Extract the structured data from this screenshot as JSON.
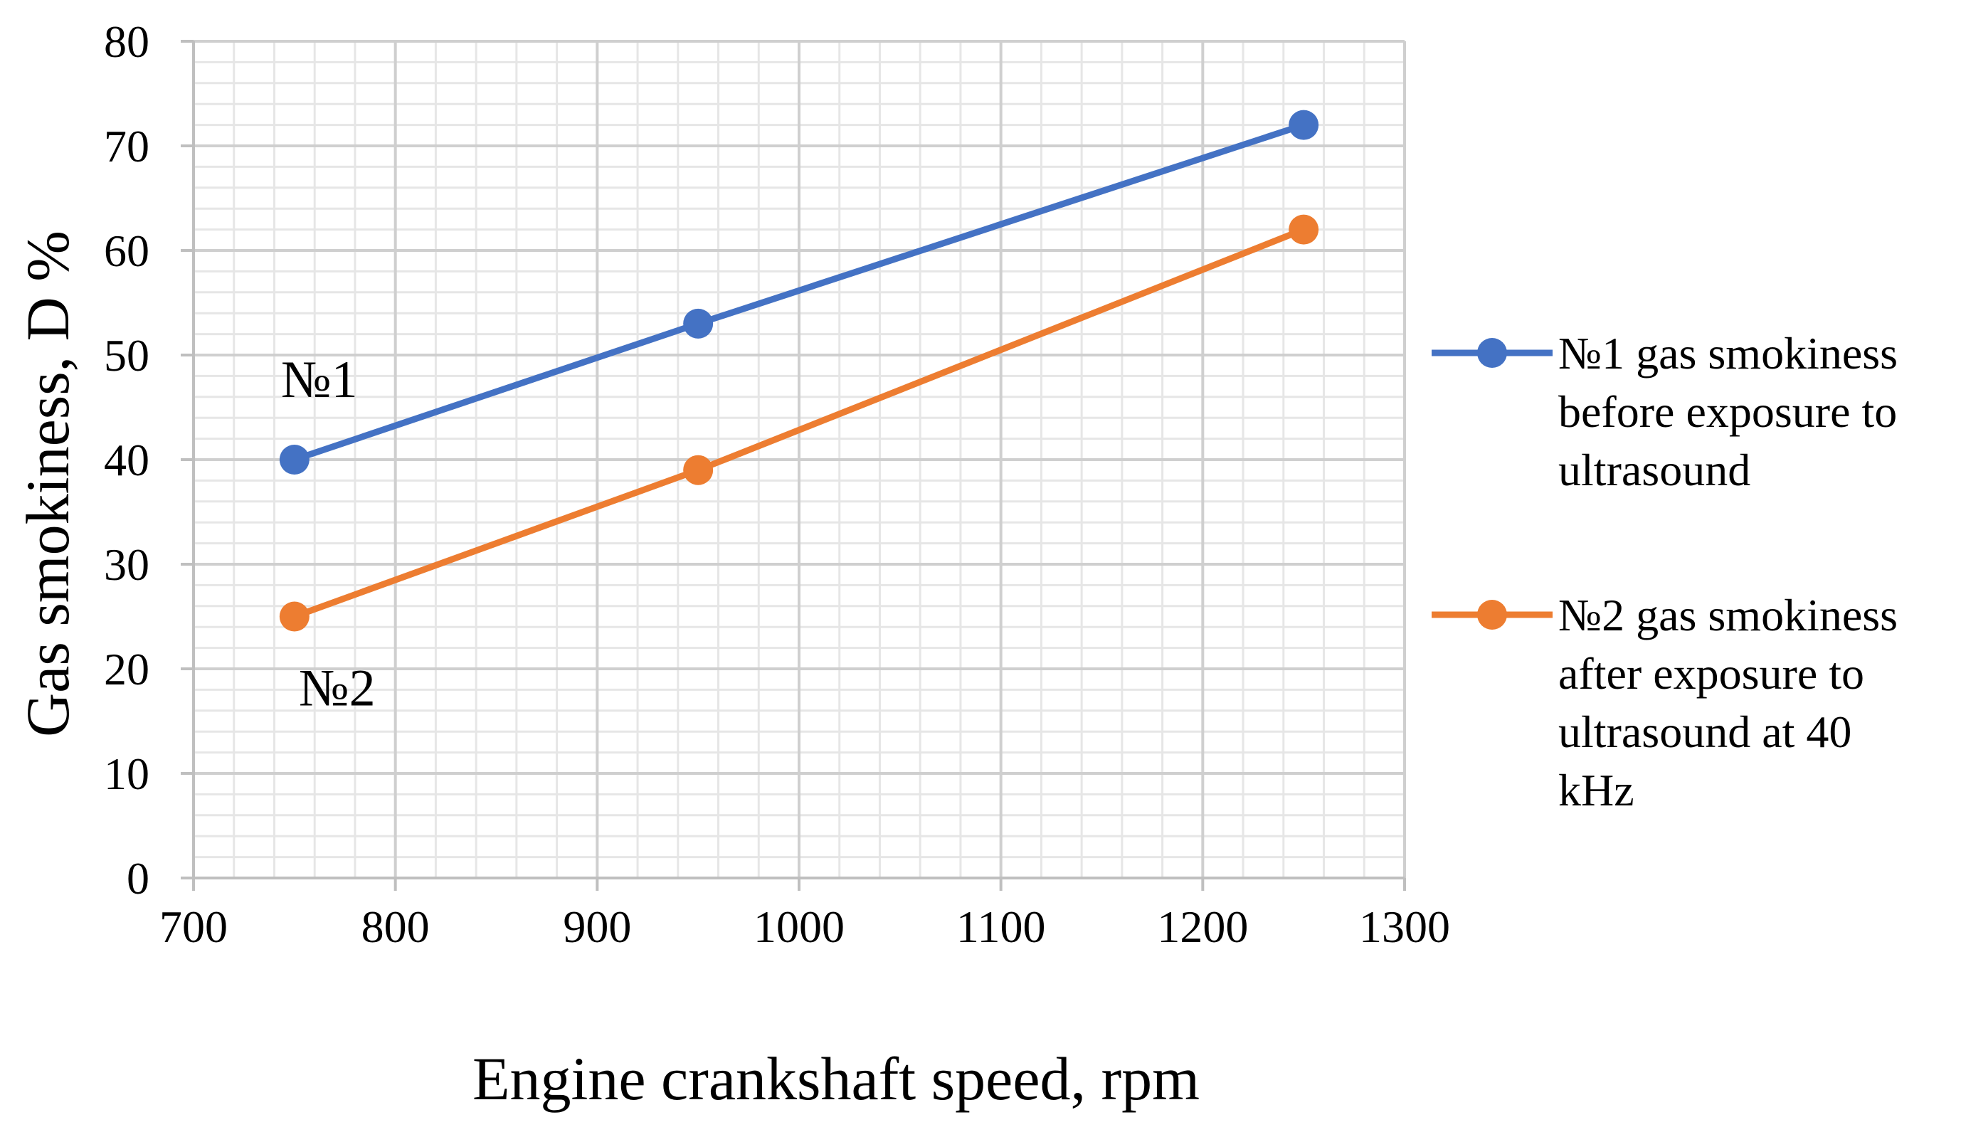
{
  "chart_data": {
    "type": "line",
    "title": "",
    "xlabel": "Engine crankshaft speed, rpm",
    "ylabel": "Gas smokiness,  D %",
    "xlim": [
      700,
      1300
    ],
    "ylim": [
      0,
      80
    ],
    "xticks": [
      700,
      800,
      900,
      1000,
      1100,
      1200,
      1300
    ],
    "yticks": [
      0,
      10,
      20,
      30,
      40,
      50,
      60,
      70,
      80
    ],
    "grid": true,
    "legend_position": "right",
    "series": [
      {
        "name": "№1 gas smokiness before exposure to ultrasound",
        "legend_lines": [
          "№1 gas smokiness",
          "before exposure to",
          "ultrasound"
        ],
        "label": "№1",
        "color": "#4472C4",
        "x": [
          750,
          950,
          1250
        ],
        "y": [
          40,
          53,
          72
        ]
      },
      {
        "name": "№2 gas smokiness after exposure to ultrasound at 40 kHz",
        "legend_lines": [
          "№2 gas smokiness",
          "after exposure to",
          "ultrasound at 40",
          "kHz"
        ],
        "label": "№2",
        "color": "#ED7D31",
        "x": [
          750,
          950,
          1250
        ],
        "y": [
          25,
          39,
          62
        ]
      }
    ]
  }
}
